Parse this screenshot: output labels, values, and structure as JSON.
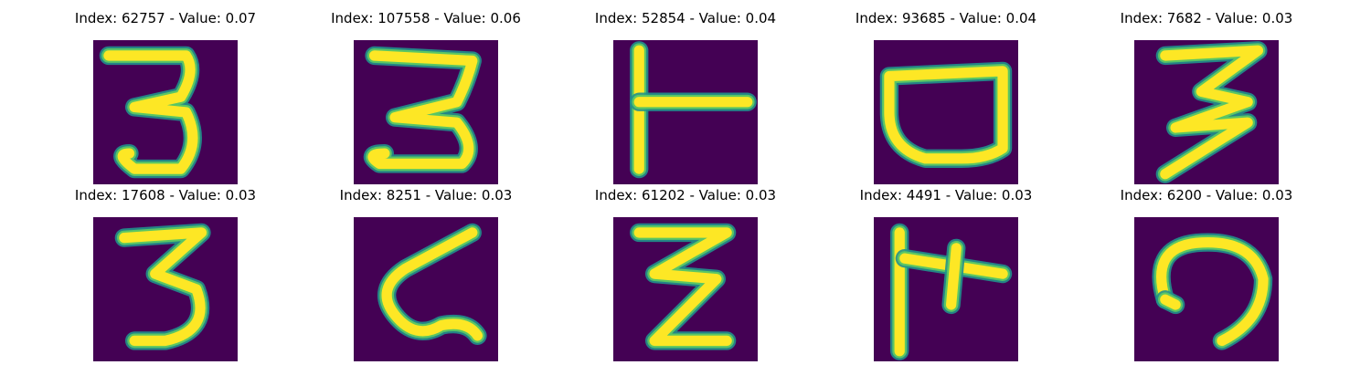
{
  "colors": {
    "background": "#440154",
    "stroke_mid": "#21918c",
    "stroke_core": "#fde725",
    "stroke_edge": "#5ec962"
  },
  "tiles": [
    {
      "title": "Index: 62757 - Value: 0.07",
      "glyph": "three-narrow-icon"
    },
    {
      "title": "Index: 107558 - Value: 0.06",
      "glyph": "three-wide-icon"
    },
    {
      "title": "Index: 52854 - Value: 0.04",
      "glyph": "t-shape-icon"
    },
    {
      "title": "Index: 93685 - Value: 0.04",
      "glyph": "bowl-shape-icon"
    },
    {
      "title": "Index: 7682 - Value: 0.03",
      "glyph": "three-bold-icon"
    },
    {
      "title": "Index: 17608 - Value: 0.03",
      "glyph": "three-thick-icon"
    },
    {
      "title": "Index: 8251 - Value: 0.03",
      "glyph": "zigzag-squiggle-icon"
    },
    {
      "title": "Index: 61202 - Value: 0.03",
      "glyph": "z-zigzag-icon"
    },
    {
      "title": "Index: 4491 - Value: 0.03",
      "glyph": "cross-branch-icon"
    },
    {
      "title": "Index: 6200 - Value: 0.03",
      "glyph": "hook-curve-icon"
    }
  ]
}
